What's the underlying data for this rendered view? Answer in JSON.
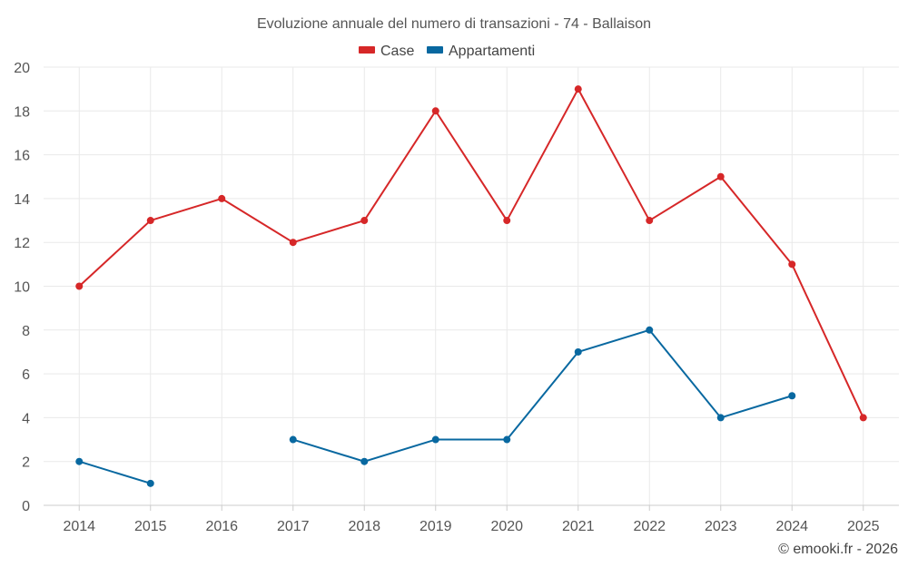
{
  "chart_data": {
    "type": "line",
    "title": "Evoluzione annuale del numero di transazioni - 74 - Ballaison",
    "categories": [
      "2014",
      "2015",
      "2016",
      "2017",
      "2018",
      "2019",
      "2020",
      "2021",
      "2022",
      "2023",
      "2024",
      "2025"
    ],
    "ylim": [
      0,
      20
    ],
    "yticks": [
      "0",
      "2",
      "4",
      "6",
      "8",
      "10",
      "12",
      "14",
      "16",
      "18",
      "20"
    ],
    "grid": true,
    "legend_position": "top-center",
    "series": [
      {
        "name": "Case",
        "color": "#d62728",
        "values": [
          10,
          13,
          14,
          12,
          13,
          18,
          13,
          19,
          13,
          15,
          11,
          4
        ]
      },
      {
        "name": "Appartamenti",
        "color": "#0868a0",
        "values": [
          2,
          1,
          null,
          3,
          2,
          3,
          3,
          7,
          8,
          4,
          5,
          null
        ]
      }
    ]
  },
  "credit": "© emooki.fr - 2026"
}
